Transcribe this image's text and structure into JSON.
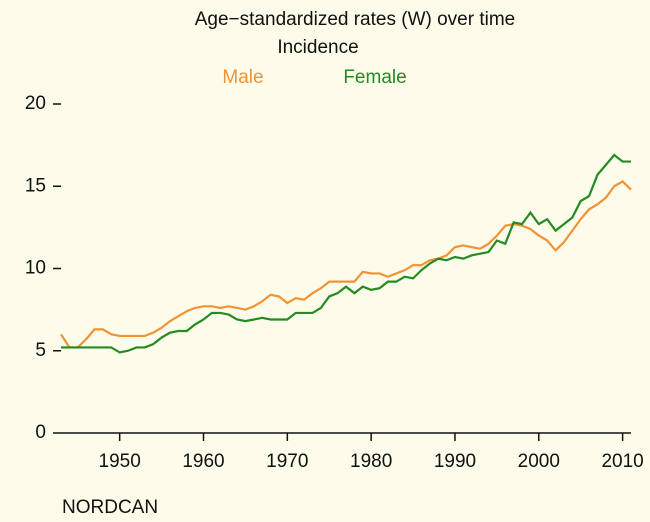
{
  "chart_data": {
    "type": "line",
    "title": "Age−standardized rates (W) over time",
    "subtitle": "Incidence",
    "source": "NORDCAN",
    "x": [
      1943,
      1944,
      1945,
      1946,
      1947,
      1948,
      1949,
      1950,
      1951,
      1952,
      1953,
      1954,
      1955,
      1956,
      1957,
      1958,
      1959,
      1960,
      1961,
      1962,
      1963,
      1964,
      1965,
      1966,
      1967,
      1968,
      1969,
      1970,
      1971,
      1972,
      1973,
      1974,
      1975,
      1976,
      1977,
      1978,
      1979,
      1980,
      1981,
      1982,
      1983,
      1984,
      1985,
      1986,
      1987,
      1988,
      1989,
      1990,
      1991,
      1992,
      1993,
      1994,
      1995,
      1996,
      1997,
      1998,
      1999,
      2000,
      2001,
      2002,
      2003,
      2004,
      2005,
      2006,
      2007,
      2008,
      2009,
      2010,
      2011
    ],
    "series": [
      {
        "name": "Male",
        "color": "#f39233",
        "values": [
          6.0,
          5.2,
          5.2,
          5.7,
          6.3,
          6.3,
          6.0,
          5.9,
          5.9,
          5.9,
          5.9,
          6.1,
          6.4,
          6.8,
          7.1,
          7.4,
          7.6,
          7.7,
          7.7,
          7.6,
          7.7,
          7.6,
          7.5,
          7.7,
          8.0,
          8.4,
          8.3,
          7.9,
          8.2,
          8.1,
          8.5,
          8.8,
          9.2,
          9.2,
          9.2,
          9.2,
          9.8,
          9.7,
          9.7,
          9.5,
          9.7,
          9.9,
          10.2,
          10.2,
          10.5,
          10.6,
          10.8,
          11.3,
          11.4,
          11.3,
          11.2,
          11.5,
          12.0,
          12.6,
          12.7,
          12.6,
          12.4,
          12.0,
          11.7,
          11.1,
          11.6,
          12.3,
          13.0,
          13.6,
          13.9,
          14.3,
          15.0,
          15.3,
          14.8
        ]
      },
      {
        "name": "Female",
        "color": "#238b21",
        "values": [
          5.2,
          5.2,
          5.2,
          5.2,
          5.2,
          5.2,
          5.2,
          4.9,
          5.0,
          5.2,
          5.2,
          5.4,
          5.8,
          6.1,
          6.2,
          6.2,
          6.6,
          6.9,
          7.3,
          7.3,
          7.2,
          6.9,
          6.8,
          6.9,
          7.0,
          6.9,
          6.9,
          6.9,
          7.3,
          7.3,
          7.3,
          7.6,
          8.3,
          8.5,
          8.9,
          8.5,
          8.9,
          8.7,
          8.8,
          9.2,
          9.2,
          9.5,
          9.4,
          9.9,
          10.3,
          10.6,
          10.5,
          10.7,
          10.6,
          10.8,
          10.9,
          11.0,
          11.7,
          11.5,
          12.8,
          12.7,
          13.4,
          12.7,
          13.0,
          12.3,
          12.7,
          13.1,
          14.1,
          14.4,
          15.7,
          16.3,
          16.9,
          16.5,
          16.5
        ]
      }
    ],
    "xlim": [
      1943,
      2011
    ],
    "xticks": [
      1950,
      1960,
      1970,
      1980,
      1990,
      2000,
      2010
    ],
    "ylim": [
      0,
      20
    ],
    "yticks": [
      0,
      5,
      10,
      15,
      20
    ]
  }
}
